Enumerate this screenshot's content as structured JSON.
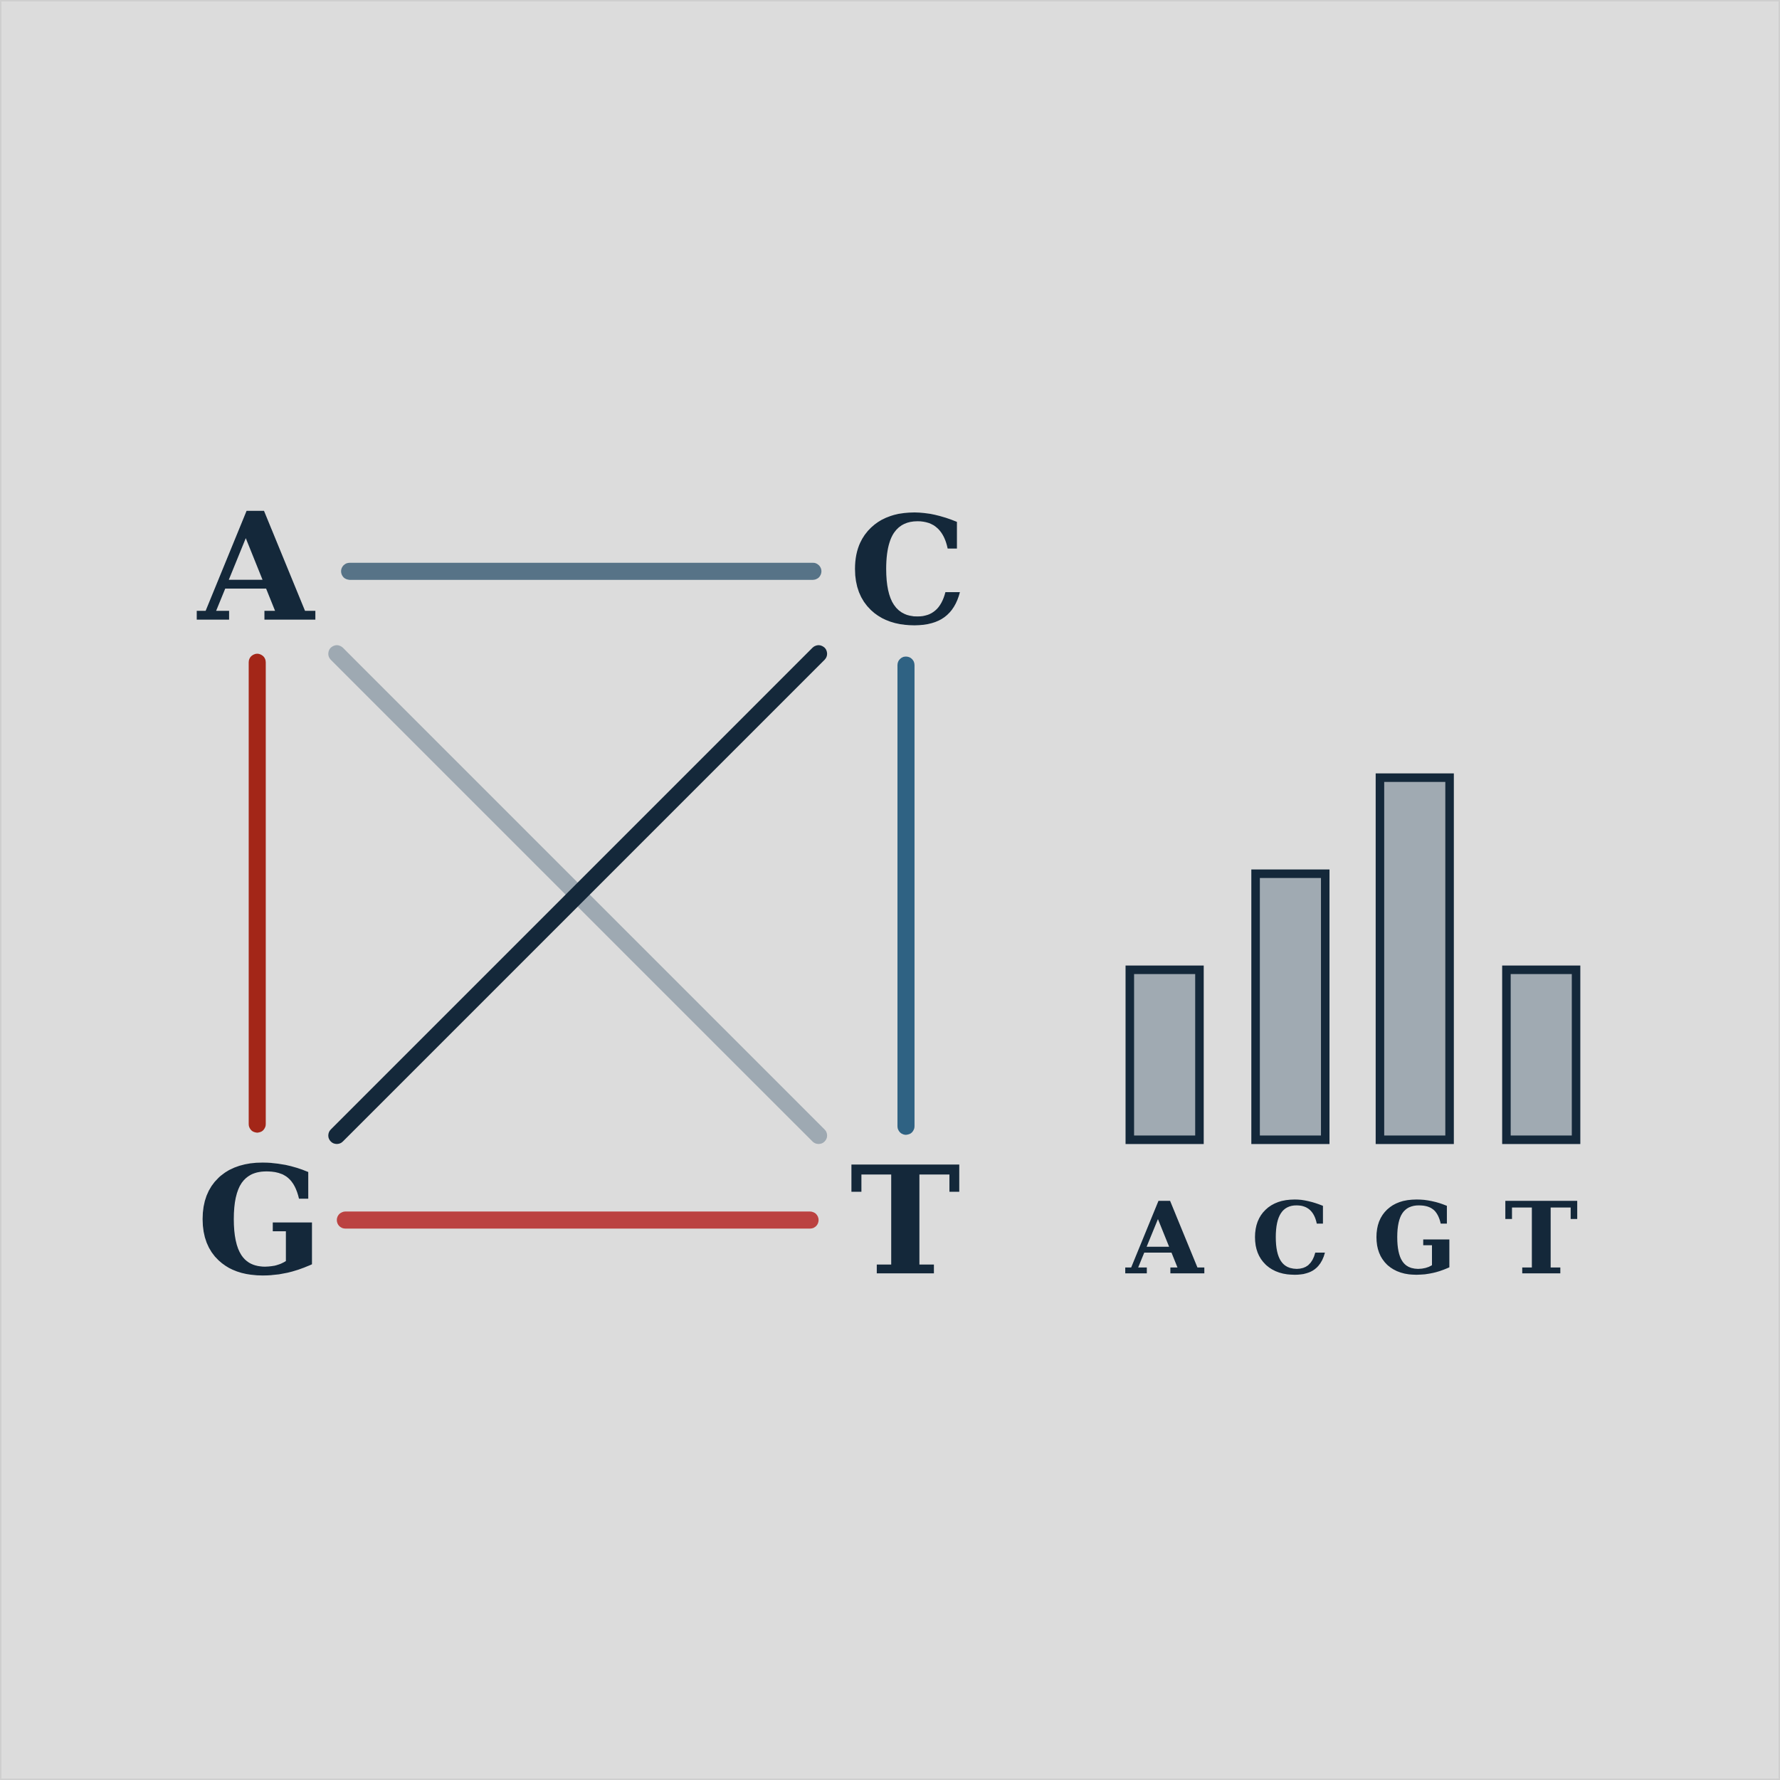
{
  "nodes": {
    "a": "A",
    "c": "C",
    "g": "G",
    "t": "T"
  },
  "edges": [
    {
      "from": "A",
      "to": "C",
      "color": "#577387"
    },
    {
      "from": "A",
      "to": "G",
      "color": "#a32618"
    },
    {
      "from": "A",
      "to": "T",
      "color": "#9ea9b2"
    },
    {
      "from": "C",
      "to": "G",
      "color": "#14283a"
    },
    {
      "from": "C",
      "to": "T",
      "color": "#2f6283"
    },
    {
      "from": "G",
      "to": "T",
      "color": "#bb4241"
    }
  ],
  "chart_data": {
    "type": "bar",
    "categories": [
      "A",
      "C",
      "G",
      "T"
    ],
    "values": [
      2.3,
      3.6,
      4.9,
      2.3
    ],
    "bar_fill": "#a0aab2",
    "bar_stroke": "#14283a"
  },
  "colors": {
    "background": "#dcdcdc",
    "text": "#14283a"
  }
}
